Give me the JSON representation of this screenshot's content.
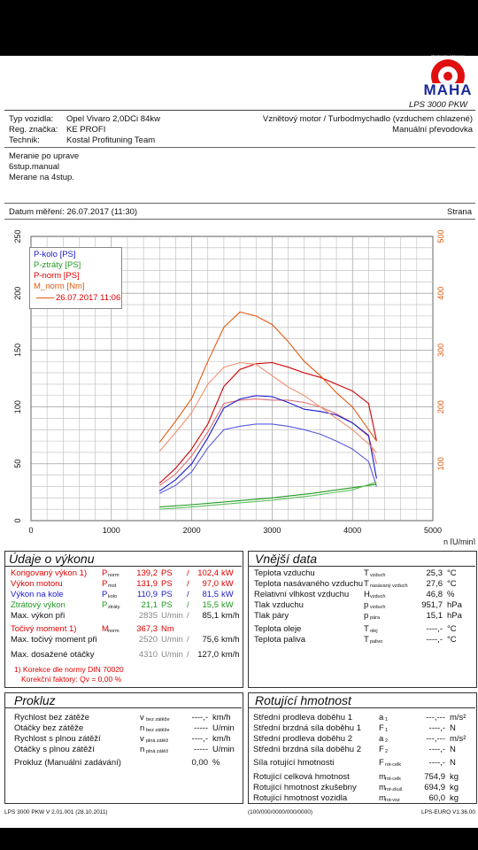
{
  "header": {
    "model": "LPS 3000 PKW",
    "logo_text": "MAHA",
    "logo_ring": "Maschinenbau Haldenwang"
  },
  "vehicle": {
    "type_label": "Typ vozidla:",
    "type_value": "Opel Vivaro 2,0DCi 84kw",
    "reg_label": "Reg. značka:",
    "reg_value": "KE PROFI",
    "tech_label": "Technik:",
    "tech_value": "Kostal Profituning Team",
    "engine": "Vznětový motor / Turbodmychadlo (vzduchem chlazené)",
    "gearbox": "Manuální převodovka"
  },
  "notes": [
    "Meranie po uprave",
    "6stup.manual",
    "Merane na 4stup."
  ],
  "measure": {
    "date_label": "Datum měření: 26.07.2017 (11:30)",
    "page_label": "Strana"
  },
  "chart_data": {
    "type": "line",
    "x_label": "n [U/min]",
    "x_ticks": [
      0,
      1000,
      2000,
      3000,
      4000,
      5000
    ],
    "y_left_ticks": [
      0,
      50,
      100,
      150,
      200,
      250
    ],
    "y_right_ticks": [
      100,
      200,
      300,
      400,
      500
    ],
    "xlim": [
      0,
      5000
    ],
    "ylim_left": [
      0,
      250
    ],
    "ylim_right": [
      0,
      500
    ],
    "legend": [
      {
        "name": "P-kolo [PS]",
        "color": "#1a1ad0"
      },
      {
        "name": "P-ztráty [PS]",
        "color": "#1f9a1f"
      },
      {
        "name": "P-norm [PS]",
        "color": "#d00000"
      },
      {
        "name": "M_norm [Nm]",
        "color": "#e05a10"
      },
      {
        "name": "26.07.2017 11:06",
        "color": "#e05a10"
      }
    ],
    "series": [
      {
        "name": "P-norm [PS]",
        "color": "#cc0000",
        "axis": "left",
        "x": [
          1600,
          1800,
          2000,
          2200,
          2400,
          2600,
          2800,
          3000,
          3200,
          3400,
          3600,
          3800,
          4000,
          4200,
          4300
        ],
        "y": [
          33,
          46,
          63,
          85,
          118,
          133,
          138,
          139,
          135,
          130,
          126,
          120,
          114,
          103,
          70
        ]
      },
      {
        "name": "P-norm [PS] (2)",
        "color": "#e07070",
        "axis": "left",
        "x": [
          1600,
          1800,
          2000,
          2200,
          2400,
          2600,
          2800,
          3000,
          3200,
          3400,
          3600,
          3800,
          4000,
          4200,
          4300
        ],
        "y": [
          31,
          41,
          57,
          78,
          103,
          106,
          107,
          106,
          106,
          104,
          100,
          94,
          86,
          74,
          50
        ]
      },
      {
        "name": "P-kolo [PS]",
        "color": "#1a1ad0",
        "axis": "left",
        "x": [
          1600,
          1800,
          2000,
          2200,
          2400,
          2600,
          2800,
          3000,
          3200,
          3400,
          3600,
          3800,
          4000,
          4200,
          4300
        ],
        "y": [
          26,
          36,
          50,
          73,
          99,
          107,
          110,
          109,
          104,
          98,
          96,
          93,
          86,
          75,
          37
        ]
      },
      {
        "name": "P-kolo [PS] (2)",
        "color": "#5a5ae0",
        "axis": "left",
        "x": [
          1600,
          1800,
          2000,
          2200,
          2400,
          2600,
          2800,
          3000,
          3200,
          3400,
          3600,
          3800,
          4000,
          4200,
          4300
        ],
        "y": [
          24,
          31,
          43,
          64,
          80,
          83,
          85,
          85,
          83,
          80,
          76,
          70,
          63,
          52,
          30
        ]
      },
      {
        "name": "M_norm [Nm]",
        "color": "#e05a10",
        "axis": "right",
        "x": [
          1600,
          1800,
          2000,
          2200,
          2400,
          2600,
          2800,
          3000,
          3200,
          3400,
          3600,
          3800,
          4000,
          4200,
          4300
        ],
        "y": [
          138,
          175,
          215,
          280,
          340,
          367,
          360,
          345,
          315,
          280,
          255,
          225,
          200,
          160,
          140
        ]
      },
      {
        "name": "M_norm [Nm] (2)",
        "color": "#f09070",
        "axis": "right",
        "x": [
          1600,
          1800,
          2000,
          2200,
          2400,
          2600,
          2800,
          3000,
          3200,
          3400,
          3600,
          3800,
          4000,
          4200,
          4300
        ],
        "y": [
          122,
          155,
          190,
          240,
          270,
          278,
          275,
          255,
          235,
          220,
          200,
          180,
          160,
          135,
          120
        ]
      },
      {
        "name": "P-ztráty [PS]",
        "color": "#1f9a1f",
        "axis": "left",
        "x": [
          1600,
          2000,
          2500,
          3000,
          3500,
          4000,
          4300
        ],
        "y": [
          12,
          14,
          17,
          20,
          24,
          29,
          32
        ]
      },
      {
        "name": "P-ztráty [PS] (2)",
        "color": "#5fbf5f",
        "axis": "left",
        "x": [
          1600,
          2000,
          2500,
          3000,
          3500,
          4000,
          4300
        ],
        "y": [
          10,
          12,
          15,
          18,
          22,
          27,
          34
        ]
      }
    ]
  },
  "perf": {
    "title": "Údaje o výkonu",
    "rows": [
      {
        "label": "Korigovaný výkon 1)",
        "sym": "P",
        "sub": "norm",
        "v1": "139,2",
        "u1": "PS",
        "sep": "/",
        "v2": "102,4",
        "u2": "kW",
        "cls": "red"
      },
      {
        "label": "Výkon motoru",
        "sym": "P",
        "sub": "mot",
        "v1": "131,9",
        "u1": "PS",
        "sep": "/",
        "v2": "97,0",
        "u2": "kW",
        "cls": "red"
      },
      {
        "label": "Výkon na kole",
        "sym": "P",
        "sub": "kolo",
        "v1": "110,9",
        "u1": "PS",
        "sep": "/",
        "v2": "81,5",
        "u2": "kW",
        "cls": "blue"
      },
      {
        "label": "Ztrátový výkon",
        "sym": "P",
        "sub": "ztráty",
        "v1": "21,1",
        "u1": "PS",
        "sep": "/",
        "v2": "15,5",
        "u2": "kW",
        "cls": "green"
      },
      {
        "label": "Max. výkon při",
        "sym": "",
        "sub": "",
        "v1": "2835",
        "u1": "U/min",
        "sep": "/",
        "v2": "85,1",
        "u2": "km/h",
        "cls": "mix"
      }
    ],
    "torque": {
      "label": "Točivý moment 1)",
      "sym": "M",
      "sub": "norm",
      "v": "367,3",
      "u": "Nm"
    },
    "torque_at": {
      "label": "Max. točivý moment při",
      "v1": "2520",
      "u1": "U/min",
      "sep": "/",
      "v2": "75,6",
      "u2": "km/h"
    },
    "max_rpm": {
      "label": "Max. dosažené otáčky",
      "v1": "4310",
      "u1": "U/min",
      "sep": "/",
      "v2": "127,0",
      "u2": "km/h"
    },
    "note1": "1) Korekce dle normy DIN 70020",
    "note2": "Korekční faktory: Qv = 0,00 %"
  },
  "env": {
    "title": "Vnější data",
    "rows": [
      {
        "label": "Teplota vzduchu",
        "sym": "T",
        "sub": "vzduch",
        "v": "25,3",
        "u": "°C"
      },
      {
        "label": "Teplota nasávaného vzduchu",
        "sym": "T",
        "sub": "nasávaný vzduch",
        "v": "27,6",
        "u": "°C"
      },
      {
        "label": "Relativní vlhkost vzduchu",
        "sym": "H",
        "sub": "vzduch",
        "v": "46,8",
        "u": "%"
      },
      {
        "label": "Tlak vzduchu",
        "sym": "p",
        "sub": "vzduch",
        "v": "951,7",
        "u": "hPa"
      },
      {
        "label": "Tlak páry",
        "sym": "p",
        "sub": "pára",
        "v": "15,1",
        "u": "hPa"
      }
    ],
    "rows2": [
      {
        "label": "Teplota oleje",
        "sym": "T",
        "sub": "olej",
        "v": "----,-",
        "u": "°C"
      },
      {
        "label": "Teplota paliva",
        "sym": "T",
        "sub": "palivo",
        "v": "----,-",
        "u": "°C"
      }
    ]
  },
  "prokluz": {
    "title": "Prokluz",
    "rows": [
      {
        "label": "Rychlost bez zátěže",
        "sym": "v",
        "sub": "bez zátěže",
        "v": "----,-",
        "u": "km/h"
      },
      {
        "label": "Otáčky bez zátěže",
        "sym": "n",
        "sub": "bez zátěže",
        "v": "-----",
        "u": "U/min"
      },
      {
        "label": "Rychlost s plnou zátěží",
        "sym": "v",
        "sub": "plná zátěž",
        "v": "----,-",
        "u": "km/h"
      },
      {
        "label": "Otáčky s plnou zátěží",
        "sym": "n",
        "sub": "plná zátěž",
        "v": "-----",
        "u": "U/min"
      }
    ],
    "manual": {
      "label": "Prokluz (Manuální zadávání)",
      "v": "0,00",
      "u": "%"
    }
  },
  "rot": {
    "title": "Rotující hmotnost",
    "rows": [
      {
        "label": "Střední prodleva doběhu 1",
        "sym": "a",
        "sub": "1",
        "v": "---,---",
        "u": "m/s²"
      },
      {
        "label": "Střední brzdná síla doběhu 1",
        "sym": "F",
        "sub": "1",
        "v": "----,-",
        "u": "N"
      },
      {
        "label": "Střední prodleva doběhu 2",
        "sym": "a",
        "sub": "2",
        "v": "---,---",
        "u": "m/s²"
      },
      {
        "label": "Střední brzdná síla doběhu 2",
        "sym": "F",
        "sub": "2",
        "v": "----,-",
        "u": "N"
      }
    ],
    "sila": {
      "label": "Síla rotující hmotnosti",
      "sym": "F",
      "sub": "rot-celk",
      "v": "----,-",
      "u": "N"
    },
    "rows2": [
      {
        "label": "Rotující celková hmotnost",
        "sym": "m",
        "sub": "rot-celk",
        "v": "754,9",
        "u": "kg"
      },
      {
        "label": "Rotující hmotnost zkušebny",
        "sym": "m",
        "sub": "rot-zkuš",
        "v": "694,9",
        "u": "kg"
      },
      {
        "label": "Rotující hmotnost vozidla",
        "sym": "m",
        "sub": "rot-voz",
        "v": "60,0",
        "u": "kg"
      }
    ]
  },
  "footer": {
    "left": "LPS 3000 PKW V 2.01.001 (28.10.2011)",
    "mid": "(100/000/0000/000/0000)",
    "right": "LPS-EURO V1.36.00"
  }
}
